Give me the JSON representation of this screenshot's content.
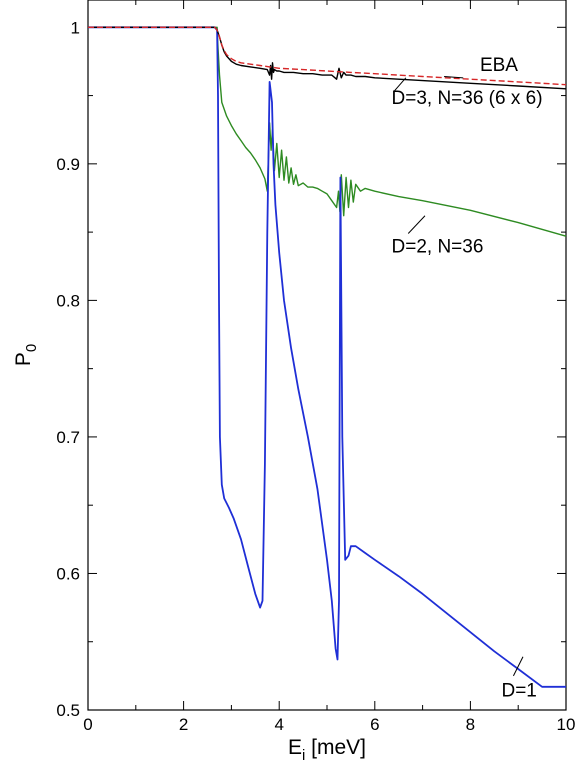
{
  "chart_data": {
    "type": "line",
    "xlabel": "E",
    "xlabel_sub": "i",
    "xlabel_unit": " [meV]",
    "ylabel": "P",
    "ylabel_sub": "0",
    "xlim": [
      0,
      10
    ],
    "ylim": [
      0.5,
      1.02
    ],
    "xticks": [
      0,
      2,
      4,
      6,
      8,
      10
    ],
    "yticks": [
      0.5,
      0.6,
      0.7,
      0.8,
      0.9,
      1
    ],
    "xtick_labels": [
      "0",
      "2",
      "4",
      "6",
      "8",
      "10"
    ],
    "ytick_labels": [
      "0.5",
      "0.6",
      "0.7",
      "0.8",
      "0.9",
      "1"
    ],
    "grid": false,
    "series": [
      {
        "name": "EBA",
        "color": "#d62728",
        "dash": "dashed",
        "x": [
          0,
          2.65,
          2.7,
          2.75,
          2.8,
          2.85,
          2.9,
          3.0,
          3.1,
          3.2,
          3.4,
          3.6,
          3.8,
          4.0,
          4.5,
          5.0,
          5.5,
          6.0,
          7.0,
          8.0,
          9.0,
          10.0
        ],
        "y": [
          1.0,
          1.0,
          0.998,
          0.993,
          0.987,
          0.983,
          0.98,
          0.977,
          0.975,
          0.974,
          0.973,
          0.972,
          0.971,
          0.97,
          0.969,
          0.968,
          0.967,
          0.966,
          0.964,
          0.962,
          0.96,
          0.958
        ]
      },
      {
        "name": "D=3, N=36 (6 x 6)",
        "color": "#000000",
        "dash": "solid",
        "x": [
          0,
          2.65,
          2.7,
          2.75,
          2.8,
          2.85,
          2.9,
          3.0,
          3.1,
          3.2,
          3.4,
          3.6,
          3.75,
          3.8,
          3.82,
          3.84,
          3.86,
          3.88,
          3.9,
          3.95,
          4.0,
          4.1,
          4.3,
          4.5,
          4.7,
          4.9,
          5.1,
          5.2,
          5.25,
          5.3,
          5.35,
          5.4,
          5.5,
          5.6,
          5.8,
          6.0,
          7.0,
          8.0,
          9.0,
          10.0
        ],
        "y": [
          1.0,
          1.0,
          0.998,
          0.993,
          0.987,
          0.982,
          0.979,
          0.975,
          0.973,
          0.972,
          0.971,
          0.97,
          0.969,
          0.965,
          0.972,
          0.962,
          0.974,
          0.967,
          0.969,
          0.968,
          0.968,
          0.967,
          0.967,
          0.966,
          0.966,
          0.965,
          0.965,
          0.962,
          0.97,
          0.963,
          0.967,
          0.965,
          0.965,
          0.964,
          0.964,
          0.963,
          0.961,
          0.959,
          0.957,
          0.955
        ]
      },
      {
        "name": "D=2, N=36",
        "color": "#2e8b22",
        "dash": "solid",
        "x": [
          0,
          2.65,
          2.7,
          2.72,
          2.75,
          2.8,
          2.9,
          3.0,
          3.1,
          3.2,
          3.3,
          3.4,
          3.5,
          3.6,
          3.7,
          3.75,
          3.8,
          3.83,
          3.86,
          3.9,
          3.95,
          4.0,
          4.05,
          4.1,
          4.15,
          4.2,
          4.25,
          4.3,
          4.35,
          4.4,
          4.5,
          4.6,
          4.7,
          4.8,
          4.9,
          5.0,
          5.1,
          5.2,
          5.24,
          5.27,
          5.3,
          5.35,
          5.4,
          5.45,
          5.5,
          5.55,
          5.6,
          5.7,
          5.8,
          6.0,
          6.5,
          7.0,
          8.0,
          9.0,
          10.0
        ],
        "y": [
          1.0,
          1.0,
          1.0,
          0.985,
          0.965,
          0.945,
          0.935,
          0.928,
          0.922,
          0.917,
          0.912,
          0.908,
          0.903,
          0.897,
          0.889,
          0.88,
          0.93,
          0.91,
          0.925,
          0.895,
          0.915,
          0.89,
          0.91,
          0.888,
          0.905,
          0.886,
          0.897,
          0.885,
          0.892,
          0.884,
          0.886,
          0.883,
          0.883,
          0.882,
          0.88,
          0.878,
          0.873,
          0.868,
          0.88,
          0.865,
          0.892,
          0.862,
          0.89,
          0.868,
          0.888,
          0.872,
          0.885,
          0.88,
          0.882,
          0.88,
          0.876,
          0.873,
          0.866,
          0.857,
          0.847
        ]
      },
      {
        "name": "D=1",
        "color": "#1f2fd6",
        "dash": "solid",
        "x": [
          0,
          2.65,
          2.7,
          2.72,
          2.74,
          2.76,
          2.8,
          2.85,
          2.95,
          3.05,
          3.2,
          3.35,
          3.5,
          3.6,
          3.65,
          3.7,
          3.75,
          3.8,
          3.85,
          3.88,
          3.92,
          4.0,
          4.1,
          4.25,
          4.4,
          4.6,
          4.8,
          5.0,
          5.1,
          5.18,
          5.22,
          5.25,
          5.28,
          5.32,
          5.38,
          5.45,
          5.5,
          5.6,
          5.8,
          6.0,
          6.5,
          7.0,
          7.5,
          8.0,
          8.5,
          9.0,
          9.5,
          10.0
        ],
        "y": [
          1.0,
          1.0,
          0.998,
          0.95,
          0.8,
          0.7,
          0.665,
          0.655,
          0.648,
          0.64,
          0.625,
          0.605,
          0.585,
          0.575,
          0.58,
          0.68,
          0.85,
          0.96,
          0.945,
          0.9,
          0.87,
          0.835,
          0.8,
          0.765,
          0.735,
          0.7,
          0.662,
          0.61,
          0.58,
          0.545,
          0.537,
          0.58,
          0.89,
          0.7,
          0.61,
          0.613,
          0.62,
          0.62,
          0.615,
          0.61,
          0.598,
          0.585,
          0.571,
          0.557,
          0.543,
          0.53,
          0.517,
          0.517
        ]
      }
    ],
    "annotations": [
      {
        "text": "EBA",
        "x": 8.2,
        "y": 0.968,
        "leader_from": [
          7.45,
          0.964
        ],
        "leader_to": [
          7.85,
          0.963
        ]
      },
      {
        "text": "D=3, N=36 (6 x 6)",
        "x": 6.35,
        "y": 0.944,
        "leader_from": [
          6.4,
          0.953
        ],
        "leader_to": [
          6.65,
          0.963
        ]
      },
      {
        "text": "D=2, N=36",
        "x": 6.35,
        "y": 0.835,
        "leader_from": [
          6.7,
          0.849
        ],
        "leader_to": [
          7.05,
          0.862
        ]
      },
      {
        "text": "D=1",
        "x": 8.65,
        "y": 0.51,
        "leader_from": [
          8.9,
          0.525
        ],
        "leader_to": [
          9.1,
          0.539
        ]
      }
    ]
  }
}
